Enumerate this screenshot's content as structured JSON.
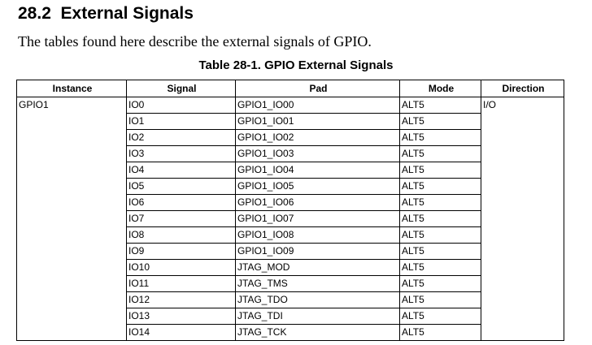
{
  "section": {
    "number": "28.2",
    "title": "External Signals"
  },
  "intro": "The tables found here describe the external signals of GPIO.",
  "table_caption": "Table 28-1.  GPIO External Signals",
  "columns": [
    "Instance",
    "Signal",
    "Pad",
    "Mode",
    "Direction"
  ],
  "rows": [
    {
      "instance": "GPIO1",
      "signal": "IO0",
      "pad": "GPIO1_IO00",
      "mode": "ALT5",
      "direction": "I/O"
    },
    {
      "instance": "",
      "signal": "IO1",
      "pad": "GPIO1_IO01",
      "mode": "ALT5",
      "direction": ""
    },
    {
      "instance": "",
      "signal": "IO2",
      "pad": "GPIO1_IO02",
      "mode": "ALT5",
      "direction": ""
    },
    {
      "instance": "",
      "signal": "IO3",
      "pad": "GPIO1_IO03",
      "mode": "ALT5",
      "direction": ""
    },
    {
      "instance": "",
      "signal": "IO4",
      "pad": "GPIO1_IO04",
      "mode": "ALT5",
      "direction": ""
    },
    {
      "instance": "",
      "signal": "IO5",
      "pad": "GPIO1_IO05",
      "mode": "ALT5",
      "direction": ""
    },
    {
      "instance": "",
      "signal": "IO6",
      "pad": "GPIO1_IO06",
      "mode": "ALT5",
      "direction": ""
    },
    {
      "instance": "",
      "signal": "IO7",
      "pad": "GPIO1_IO07",
      "mode": "ALT5",
      "direction": ""
    },
    {
      "instance": "",
      "signal": "IO8",
      "pad": "GPIO1_IO08",
      "mode": "ALT5",
      "direction": ""
    },
    {
      "instance": "",
      "signal": "IO9",
      "pad": "GPIO1_IO09",
      "mode": "ALT5",
      "direction": ""
    },
    {
      "instance": "",
      "signal": "IO10",
      "pad": "JTAG_MOD",
      "mode": "ALT5",
      "direction": ""
    },
    {
      "instance": "",
      "signal": "IO11",
      "pad": "JTAG_TMS",
      "mode": "ALT5",
      "direction": ""
    },
    {
      "instance": "",
      "signal": "IO12",
      "pad": "JTAG_TDO",
      "mode": "ALT5",
      "direction": ""
    },
    {
      "instance": "",
      "signal": "IO13",
      "pad": "JTAG_TDI",
      "mode": "ALT5",
      "direction": ""
    },
    {
      "instance": "",
      "signal": "IO14",
      "pad": "JTAG_TCK",
      "mode": "ALT5",
      "direction": ""
    }
  ]
}
